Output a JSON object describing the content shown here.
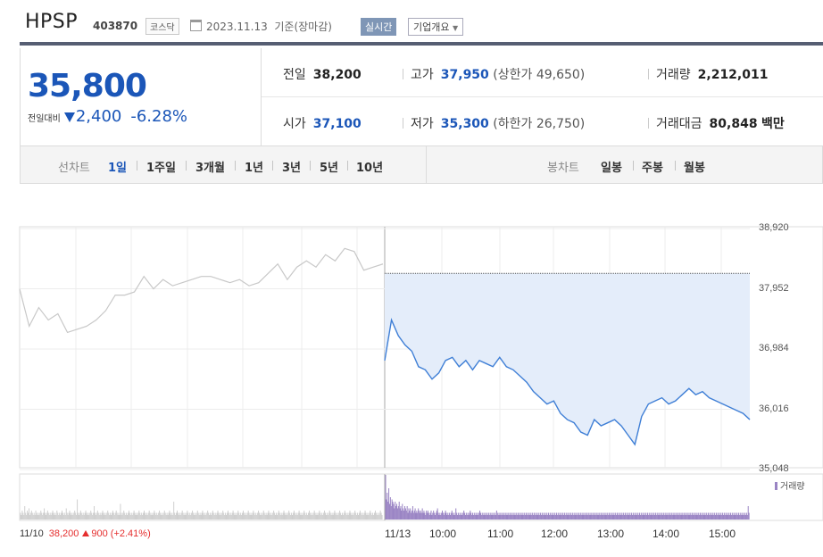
{
  "header": {
    "name": "HPSP",
    "code": "403870",
    "market": "코스닥",
    "date": "2023.11.13",
    "basis": "기준(장마감)",
    "realtime_label": "실시간",
    "corp_label": "기업개요"
  },
  "quote": {
    "price": "35,800",
    "change_label": "전일대비",
    "change_direction": "down",
    "change": "2,400",
    "change_pct": "-6.28%",
    "prev_label": "전일",
    "prev": "38,200",
    "high_label": "고가",
    "high": "37,950",
    "upper_limit_label": "(상한가",
    "upper_limit": "49,650)",
    "volume_label": "거래량",
    "volume": "2,212,011",
    "open_label": "시가",
    "open": "37,100",
    "low_label": "저가",
    "low": "35,300",
    "lower_limit_label": "(하한가",
    "lower_limit": "26,750)",
    "amount_label": "거래대금",
    "amount": "80,848",
    "amount_unit": "백만"
  },
  "periods": {
    "line_label": "선차트",
    "line_items": [
      "1일",
      "1주일",
      "3개월",
      "1년",
      "3년",
      "5년",
      "10년"
    ],
    "line_active": 0,
    "candle_label": "봉차트",
    "candle_items": [
      "일봉",
      "주봉",
      "월봉"
    ]
  },
  "colors": {
    "price_blue": "#1b56b8",
    "today_line": "#3f7fd6",
    "today_fill": "#e4edfa",
    "prev_line": "#c8c8c8",
    "volume_today": "#9a84c4",
    "volume_prev": "#cfcfcf",
    "up_red": "#e52e2e"
  },
  "chart_data": {
    "type": "line",
    "ylim": [
      35048,
      38920
    ],
    "yticks": [
      "38,920",
      "37,952",
      "36,984",
      "36,016",
      "35,048"
    ],
    "prev_close": 38200,
    "xticks": [
      "11/13",
      "10:00",
      "11:00",
      "12:00",
      "13:00",
      "14:00",
      "15:00"
    ],
    "volume_legend": "거래량",
    "prev_day": {
      "date": "11/10",
      "close": "38,200",
      "change": "900",
      "change_pct": "(+2.41%)",
      "prices": [
        37950,
        37350,
        37650,
        37450,
        37550,
        37250,
        37300,
        37350,
        37450,
        37600,
        37850,
        37850,
        37900,
        38150,
        37950,
        38100,
        38000,
        38050,
        38100,
        38150,
        38150,
        38100,
        38050,
        38100,
        38000,
        38050,
        38200,
        38350,
        38100,
        38300,
        38400,
        38300,
        38500,
        38400,
        38600,
        38550,
        38250,
        38300,
        38350
      ]
    },
    "today": {
      "date": "11/13",
      "prices": [
        36800,
        37450,
        37200,
        37050,
        36950,
        36700,
        36650,
        36500,
        36600,
        36800,
        36850,
        36700,
        36800,
        36650,
        36800,
        36750,
        36700,
        36850,
        36700,
        36650,
        36550,
        36450,
        36300,
        36200,
        36100,
        36150,
        35950,
        35850,
        35800,
        35650,
        35600,
        35850,
        35750,
        35800,
        35850,
        35750,
        35600,
        35450,
        35900,
        36100,
        36150,
        36200,
        36100,
        36150,
        36250,
        36350,
        36250,
        36300,
        36200,
        36150,
        36100,
        36050,
        36000,
        35950,
        35850
      ]
    },
    "volume": {
      "prev": [
        3,
        2,
        4,
        3,
        2,
        6,
        3,
        2,
        4,
        3,
        5,
        2,
        3,
        4,
        3,
        2,
        3,
        2,
        4,
        3,
        2,
        3,
        2,
        3,
        4,
        3,
        2,
        3,
        5,
        3,
        2,
        3,
        4,
        3,
        2,
        3,
        2,
        3,
        4,
        3,
        2,
        3,
        2,
        4,
        3,
        2,
        3,
        2,
        3,
        4,
        3,
        2,
        3,
        2,
        5,
        3,
        2,
        3,
        4,
        3,
        2,
        3,
        2,
        3,
        4,
        3,
        2,
        9,
        3,
        2,
        3,
        4,
        3,
        2,
        3,
        2,
        3,
        4,
        3,
        2,
        3,
        2,
        3,
        4,
        3,
        2,
        3,
        6,
        3,
        2,
        3,
        4,
        3,
        2,
        3,
        2,
        3,
        4,
        3,
        2,
        3,
        2,
        3,
        4,
        3,
        2,
        3,
        2,
        3,
        4,
        3,
        2,
        3,
        4,
        3,
        2,
        3,
        2,
        7,
        3,
        2,
        3,
        4,
        3,
        2,
        3,
        2,
        3,
        4,
        3,
        2,
        3,
        2,
        3,
        4,
        3,
        2,
        3,
        2,
        3,
        4,
        3,
        2,
        3,
        2,
        3,
        4,
        3,
        2,
        3,
        2,
        3,
        4,
        3,
        2,
        3,
        2,
        3,
        4,
        3,
        2,
        3,
        2,
        3,
        4,
        3,
        2,
        3,
        2,
        3,
        4,
        3,
        2,
        3,
        2,
        3,
        4,
        3,
        2,
        3,
        2,
        8,
        3,
        2,
        3,
        4,
        3,
        2,
        3,
        2,
        3,
        4,
        3,
        2,
        3,
        2,
        3,
        4,
        3,
        2,
        3,
        2,
        3,
        4,
        3,
        2,
        3,
        2,
        3,
        4,
        3,
        2,
        3,
        2,
        3,
        4,
        3,
        2,
        3,
        2,
        3,
        4,
        3,
        2,
        3,
        2,
        3,
        4,
        3,
        2,
        3,
        2,
        3,
        4,
        3,
        2,
        3,
        2,
        3,
        4,
        3,
        2,
        3,
        2,
        3,
        4,
        3,
        2,
        3,
        2,
        3,
        4,
        3,
        2,
        3,
        2,
        3,
        4,
        3,
        2,
        3,
        2,
        3,
        4,
        3,
        2,
        3,
        2,
        3,
        4,
        3,
        2,
        3,
        2,
        3,
        4,
        3,
        2,
        3,
        2,
        3,
        4,
        3,
        2,
        3,
        2,
        3,
        4,
        3,
        2,
        3,
        2,
        3,
        4,
        3,
        2,
        3,
        2,
        3,
        4,
        3,
        2,
        3,
        2,
        3,
        4,
        3,
        2,
        3,
        2,
        3,
        4,
        3,
        2,
        3,
        2,
        3,
        4,
        3,
        2,
        3,
        2,
        3,
        4,
        3,
        2,
        3,
        2,
        3,
        4,
        3,
        2,
        3,
        2,
        3,
        4,
        3,
        2,
        3,
        2,
        3,
        4,
        3,
        2,
        3,
        2,
        3,
        4,
        3,
        2,
        3,
        2,
        3,
        4,
        3,
        2,
        3,
        2,
        3,
        4,
        3,
        2,
        3,
        2,
        3,
        4,
        3,
        2,
        3,
        2,
        3,
        4,
        3,
        2,
        3,
        2,
        3,
        4,
        3,
        2,
        3,
        2,
        3,
        4,
        3,
        2,
        3,
        2,
        3,
        4,
        3,
        2,
        3,
        2,
        3,
        4,
        3,
        2,
        3,
        2,
        3,
        4,
        3,
        2,
        3,
        2,
        3,
        4,
        3,
        2,
        3,
        2,
        3,
        4,
        3,
        2,
        3,
        2,
        3,
        4,
        3,
        2,
        3,
        2,
        3,
        4,
        3,
        2
      ],
      "today": [
        20,
        9,
        12,
        8,
        14,
        7,
        10,
        6,
        9,
        8,
        7,
        5,
        8,
        6,
        7,
        5,
        6,
        8,
        5,
        6,
        4,
        7,
        5,
        4,
        6,
        5,
        4,
        6,
        3,
        5,
        4,
        5,
        3,
        4,
        6,
        3,
        4,
        5,
        3,
        4,
        3,
        5,
        4,
        3,
        4,
        3,
        5,
        3,
        4,
        3,
        2,
        4,
        3,
        4,
        3,
        2,
        3,
        4,
        2,
        3,
        4,
        3,
        2,
        3,
        4,
        5,
        3,
        2,
        3,
        2,
        3,
        4,
        3,
        2,
        3,
        4,
        3,
        2,
        3,
        2,
        3,
        2,
        3,
        4,
        3,
        2,
        3,
        2,
        5,
        3,
        2,
        3,
        2,
        3,
        2,
        3,
        2,
        3,
        4,
        3,
        2,
        3,
        2,
        3,
        2,
        3,
        4,
        3,
        2,
        3,
        2,
        3,
        2,
        3,
        2,
        3,
        2,
        3,
        4,
        3,
        2,
        3,
        2,
        3,
        2,
        3,
        2,
        3,
        2,
        3,
        2,
        3,
        2,
        3,
        2,
        3,
        2,
        3,
        2,
        4,
        3,
        2,
        3,
        2,
        3,
        2,
        3,
        2,
        3,
        2,
        3,
        2,
        3,
        2,
        3,
        2,
        3,
        2,
        3,
        2,
        3,
        2,
        3,
        2,
        3,
        2,
        3,
        2,
        3,
        2,
        3,
        2,
        3,
        2,
        3,
        2,
        3,
        2,
        3,
        2,
        3,
        2,
        3,
        2,
        3,
        2,
        3,
        2,
        3,
        2,
        3,
        2,
        3,
        2,
        3,
        2,
        3,
        2,
        3,
        2,
        3,
        2,
        3,
        2,
        3,
        2,
        3,
        2,
        3,
        2,
        3,
        2,
        3,
        2,
        3,
        2,
        3,
        2,
        3,
        2,
        3,
        2,
        3,
        2,
        3,
        2,
        3,
        2,
        3,
        2,
        3,
        2,
        3,
        2,
        3,
        2,
        3,
        2,
        3,
        2,
        3,
        2,
        3,
        2,
        3,
        2,
        3,
        2,
        3,
        2,
        3,
        2,
        3,
        2,
        3,
        2,
        3,
        2,
        3,
        2,
        3,
        2,
        3,
        2,
        3,
        2,
        3,
        2,
        3,
        2,
        3,
        2,
        3,
        2,
        3,
        2,
        3,
        2,
        3,
        2,
        3,
        2,
        3,
        2,
        3,
        2,
        3,
        2,
        3,
        2,
        3,
        2,
        3,
        2,
        3,
        2,
        3,
        2,
        3,
        2,
        3,
        2,
        3,
        2,
        3,
        2,
        3,
        2,
        3,
        2,
        3,
        2,
        3,
        2,
        3,
        2,
        3,
        2,
        3,
        2,
        3,
        2,
        3,
        2,
        3,
        2,
        3,
        2,
        3,
        2,
        3,
        2,
        3,
        2,
        3,
        2,
        3,
        2,
        3,
        2,
        3,
        2,
        3,
        2,
        3,
        2,
        3,
        2,
        3,
        2,
        3,
        2,
        3,
        2,
        3,
        2,
        3,
        2,
        3,
        2,
        3,
        2,
        3,
        2,
        3,
        2,
        3,
        2,
        3,
        2,
        3,
        2,
        3,
        2,
        3,
        2,
        3,
        2,
        3,
        2,
        3,
        2,
        3,
        2,
        3,
        2,
        3,
        2,
        3,
        2,
        3,
        2,
        3,
        2,
        3,
        2,
        3,
        2,
        3,
        2,
        3,
        2,
        3,
        2,
        3,
        2,
        3,
        2,
        3,
        2,
        3,
        2,
        3,
        2,
        3,
        2,
        3,
        2,
        3,
        2,
        3,
        2,
        3,
        2,
        3,
        2,
        3,
        2,
        3,
        2,
        3,
        2,
        3,
        2,
        3,
        2,
        3,
        2,
        3,
        2,
        3,
        2,
        3,
        2,
        3,
        2,
        3,
        2,
        3,
        2,
        3,
        2,
        3,
        2,
        6,
        3
      ]
    }
  }
}
